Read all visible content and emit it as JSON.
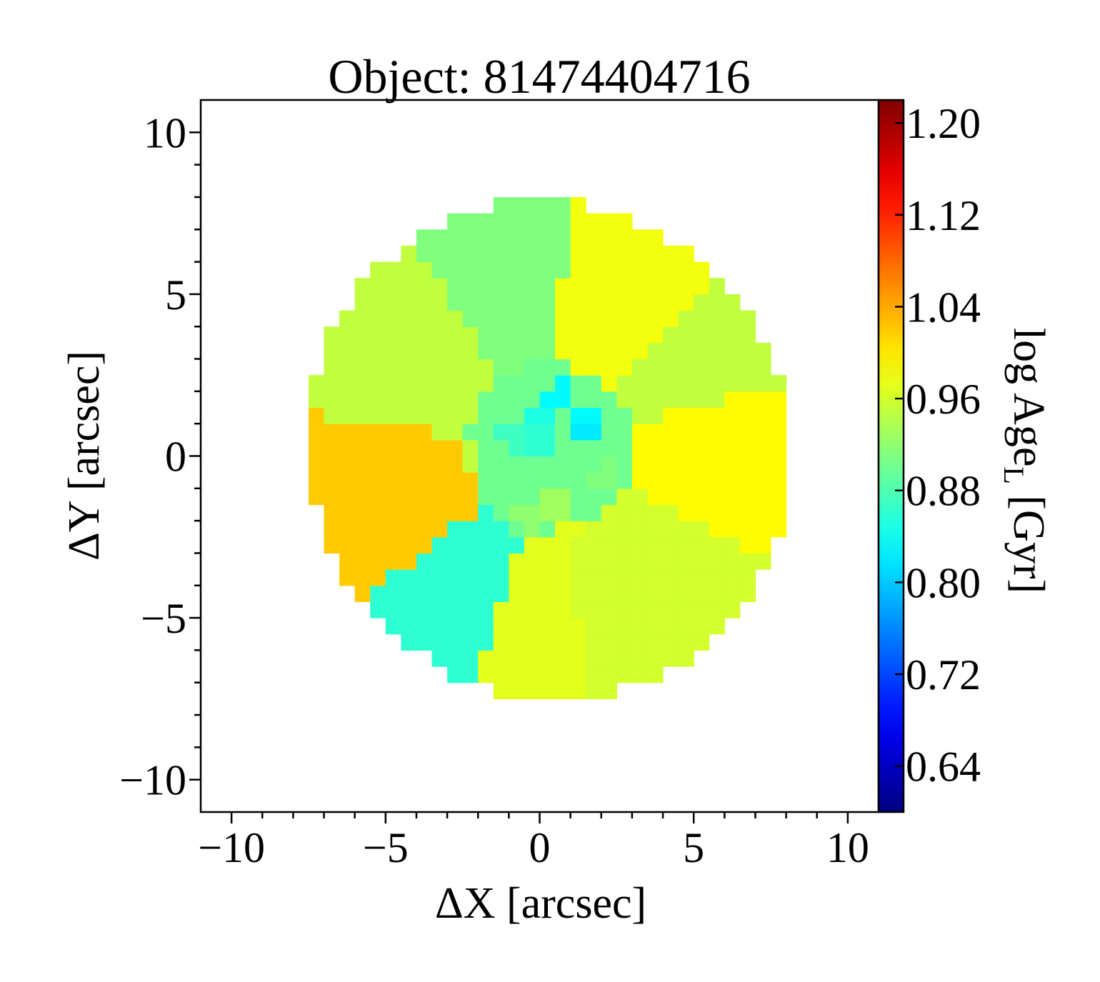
{
  "chart_data": {
    "type": "heatmap",
    "title": "Object: 81474404716",
    "xlabel": "ΔX [arcsec]",
    "ylabel": "ΔY [arcsec]",
    "xlim": [
      -11,
      11
    ],
    "ylim": [
      -11,
      11
    ],
    "xticks": [
      -10,
      -5,
      0,
      5,
      10
    ],
    "yticks": [
      -10,
      -5,
      0,
      5,
      10
    ],
    "xtick_labels": [
      "−10",
      "−5",
      "0",
      "5",
      "10"
    ],
    "ytick_labels": [
      "−10",
      "−5",
      "0",
      "5",
      "10"
    ],
    "colorbar": {
      "label_main": "log Age",
      "label_sub": "L",
      "label_unit": " [Gyr]",
      "min": 0.6,
      "max": 1.22,
      "ticks": [
        0.64,
        0.72,
        0.8,
        0.88,
        0.96,
        1.04,
        1.12,
        1.2
      ],
      "tick_labels": [
        "0.64",
        "0.72",
        "0.80",
        "0.88",
        "0.96",
        "1.04",
        "1.12",
        "1.20"
      ],
      "colormap": "jet"
    },
    "map": {
      "center": [
        0.3,
        0.2
      ],
      "semi_axes": [
        7.9,
        7.6
      ],
      "rotation_deg": -30,
      "pixel_size": 0.5,
      "inner_radius": 2.7,
      "sectors": [
        {
          "from_deg": -25,
          "to_deg": 15,
          "value": 0.99
        },
        {
          "from_deg": 15,
          "to_deg": 45,
          "value": 0.95
        },
        {
          "from_deg": 45,
          "to_deg": 85,
          "value": 0.98
        },
        {
          "from_deg": 85,
          "to_deg": 125,
          "value": 0.91
        },
        {
          "from_deg": 125,
          "to_deg": 172,
          "value": 0.95
        },
        {
          "from_deg": 172,
          "to_deg": 218,
          "value": 1.02
        },
        {
          "from_deg": 218,
          "to_deg": 252,
          "value": 0.86
        },
        {
          "from_deg": 252,
          "to_deg": 280,
          "value": 0.97
        },
        {
          "from_deg": 280,
          "to_deg": 335,
          "value": 0.96
        }
      ],
      "core_base_value": 0.9,
      "core_spots": [
        {
          "x": 0.7,
          "y": 1.9,
          "value": 0.83
        },
        {
          "x": 1.5,
          "y": 1.1,
          "value": 0.83
        },
        {
          "x": 1.6,
          "y": 0.9,
          "value": 0.82
        },
        {
          "x": -0.2,
          "y": 1.2,
          "value": 0.85
        },
        {
          "x": 0.1,
          "y": 0.5,
          "value": 0.86
        },
        {
          "x": -0.8,
          "y": 0.7,
          "value": 0.87
        },
        {
          "x": 0.5,
          "y": -1.5,
          "value": 0.93
        },
        {
          "x": 1.0,
          "y": -2.5,
          "value": 0.97
        },
        {
          "x": -2.6,
          "y": 0.1,
          "value": 0.95
        },
        {
          "x": 2.2,
          "y": -0.6,
          "value": 0.91
        },
        {
          "x": -0.3,
          "y": -1.9,
          "value": 0.92
        }
      ]
    }
  }
}
